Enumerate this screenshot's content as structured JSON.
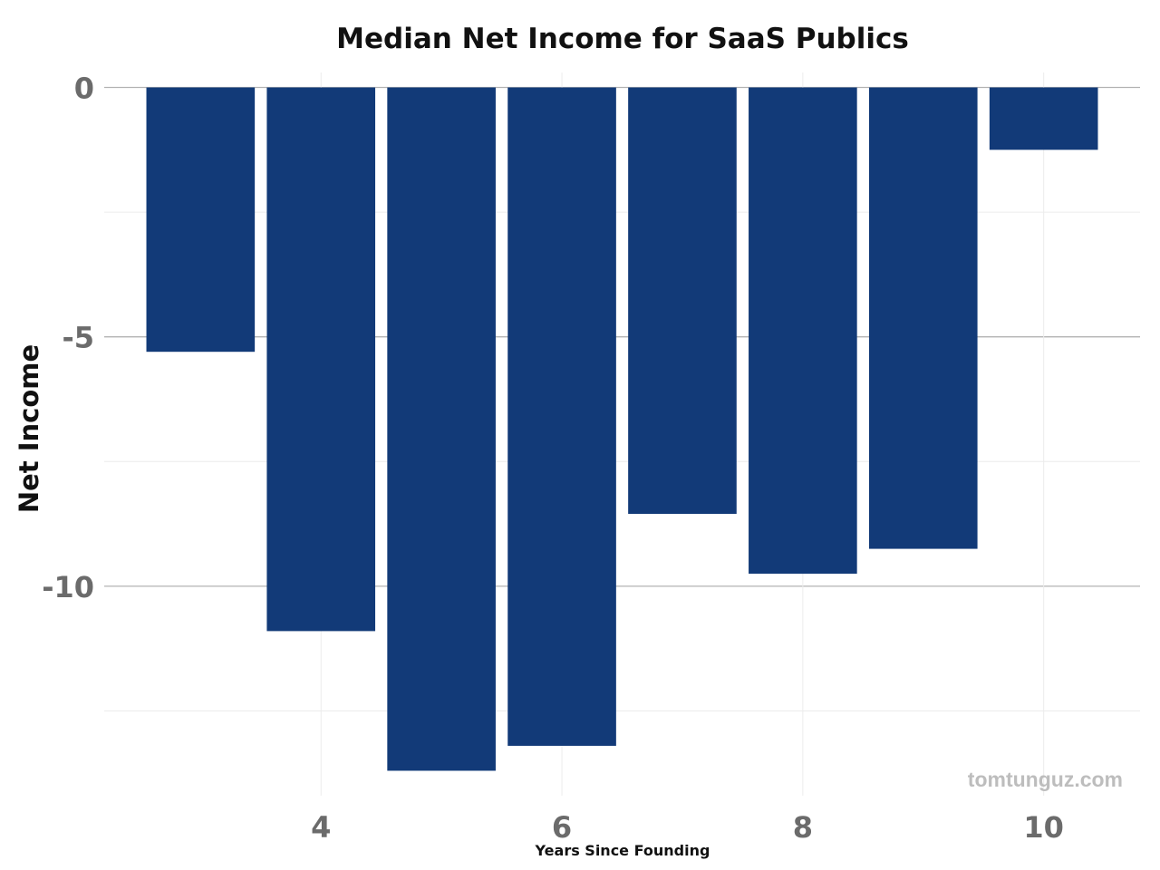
{
  "colors": {
    "bar": "#123a78",
    "major_grid": "#b3b3b3",
    "minor_grid": "#ececec",
    "tick_text": "#6b6b6b",
    "watermark": "#bdbdbd"
  },
  "watermark": "tomtunguz.com",
  "chart_data": {
    "type": "bar",
    "title": "Median Net Income for SaaS Publics",
    "xlabel": "Years Since Founding",
    "ylabel": "Net Income",
    "x": [
      3,
      4,
      5,
      6,
      7,
      8,
      9,
      10
    ],
    "values": [
      -5.3,
      -10.9,
      -13.7,
      -13.2,
      -8.55,
      -9.75,
      -9.25,
      -1.25
    ],
    "xlim": [
      2.2,
      10.8
    ],
    "ylim": [
      -14.2,
      0.3
    ],
    "xticks": [
      4,
      6,
      8,
      10
    ],
    "xtick_labels": [
      "4",
      "6",
      "8",
      "10"
    ],
    "yticks": [
      0,
      -5,
      -10
    ],
    "ytick_labels": [
      "0",
      "-5",
      "-10"
    ],
    "minor_yticks": [
      -2.5,
      -7.5,
      -12.5
    ],
    "grid": true,
    "legend": "none"
  }
}
